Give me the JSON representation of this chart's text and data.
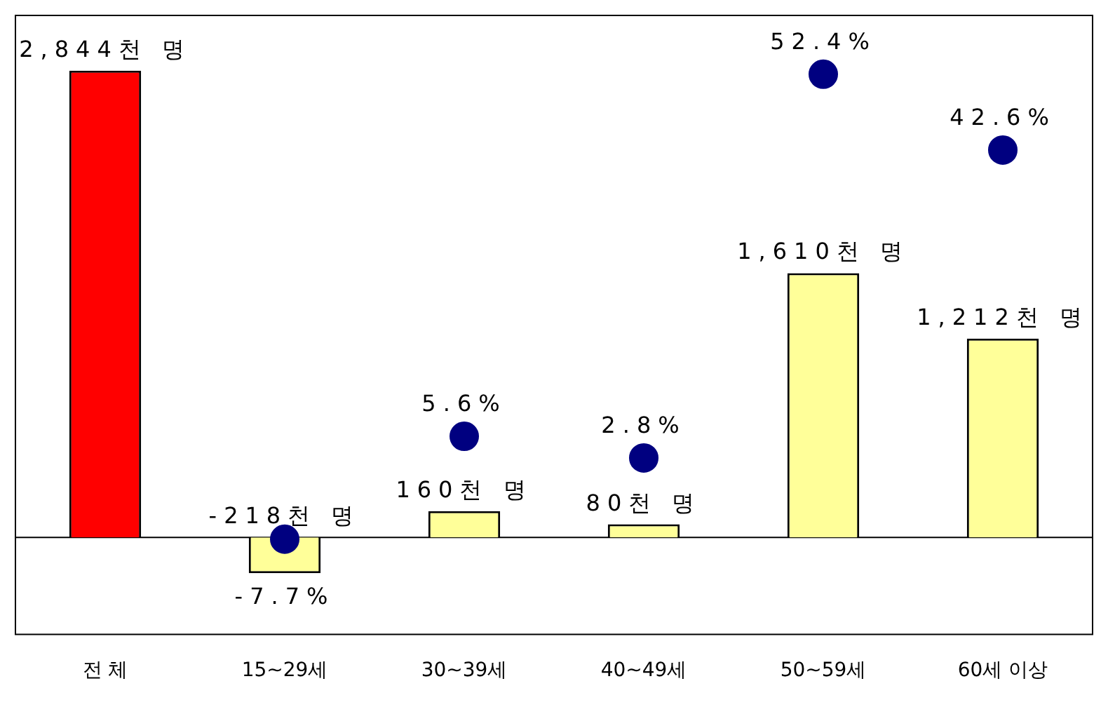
{
  "chart_data": {
    "type": "bar",
    "categories": [
      "전 체",
      "15~29세",
      "30~39세",
      "40~49세",
      "50~59세",
      "60세 이상"
    ],
    "series": [
      {
        "colors": [
          "#ff0000",
          "#ffff99",
          "#ffff99",
          "#ffff99",
          "#ffff99",
          "#ffff99"
        ],
        "values": [
          2844,
          -218,
          160,
          80,
          1610,
          1212
        ],
        "value_labels": [
          "2,844천 명",
          "-218천 명",
          "160천 명",
          "80천 명",
          "1,610천 명",
          "1,212천 명"
        ]
      },
      {
        "type": "scatter",
        "axis": "y2",
        "color": "#000080",
        "x": [
          "15~29세",
          "30~39세",
          "40~49세",
          "50~59세",
          "60세 이상"
        ],
        "values": [
          -7.7,
          5.6,
          2.8,
          52.4,
          42.6
        ],
        "value_labels": [
          "-7.7%",
          "5.6%",
          "2.8%",
          "52.4%",
          "42.6%"
        ]
      }
    ],
    "ylim": [
      -590,
      3180
    ],
    "tick_labels": "x",
    "grid": false,
    "legend": false,
    "marker": "circle"
  }
}
